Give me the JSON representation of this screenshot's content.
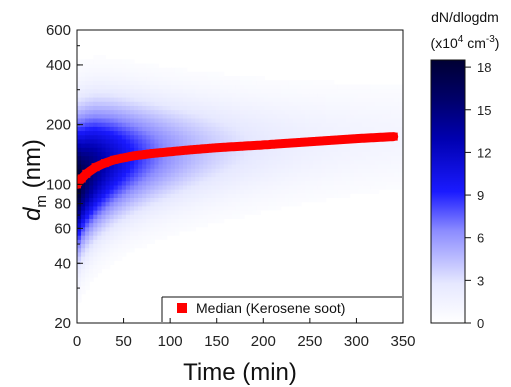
{
  "chart_data": {
    "type": "heatmap",
    "title": "",
    "xlabel": "Time (min)",
    "ylabel_main": "d",
    "ylabel_sub": "m",
    "ylabel_unit": " (nm)",
    "x_ticks": [
      0,
      50,
      100,
      150,
      200,
      250,
      300,
      350
    ],
    "y_ticks": [
      20,
      40,
      60,
      80,
      100,
      200,
      400,
      600
    ],
    "xlim": [
      0,
      350
    ],
    "ylim": [
      20,
      600
    ],
    "y_scale": "log",
    "colorbar": {
      "title_line1": "dN/dlogdm",
      "title_line2_prefix": "(x10",
      "title_line2_exp": "4",
      "title_line2_mid": " cm",
      "title_line2_exp2": "-3",
      "title_line2_suffix": ")",
      "ticks": [
        0,
        3,
        6,
        9,
        12,
        15,
        18
      ],
      "range": [
        0,
        18.5
      ],
      "colors": [
        "#ffffff",
        "#1a1aff",
        "#000033"
      ]
    },
    "series": [
      {
        "name": "Median (Kerosene soot)",
        "color": "#ff0000",
        "x": [
          0,
          5,
          10,
          20,
          30,
          40,
          50,
          60,
          70,
          80,
          100,
          120,
          150,
          180,
          200,
          250,
          300,
          340
        ],
        "y": [
          100,
          107,
          113,
          122,
          128,
          133,
          136,
          139,
          141,
          143,
          146,
          149,
          153,
          156,
          158,
          164,
          170,
          174
        ]
      }
    ],
    "legend": {
      "position": "bottom-right",
      "label": "Median (Kerosene soot)"
    }
  }
}
